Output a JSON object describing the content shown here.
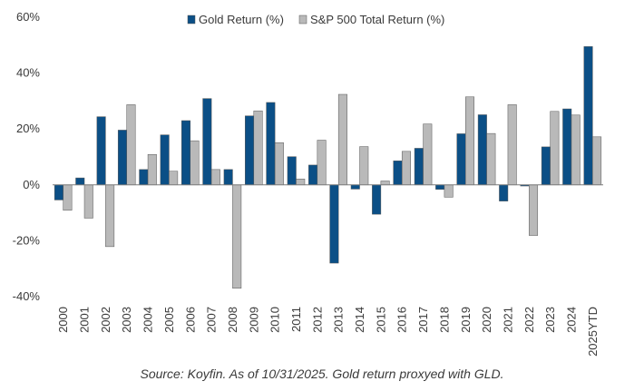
{
  "chart_data": {
    "type": "bar",
    "categories": [
      "2000",
      "2001",
      "2002",
      "2003",
      "2004",
      "2005",
      "2006",
      "2007",
      "2008",
      "2009",
      "2010",
      "2011",
      "2012",
      "2013",
      "2014",
      "2015",
      "2016",
      "2017",
      "2018",
      "2019",
      "2020",
      "2021",
      "2022",
      "2023",
      "2024",
      "2025YTD"
    ],
    "series": [
      {
        "name": "Gold Return (%)",
        "color": "#0b4f86",
        "values": [
          -5.4,
          2.5,
          24.4,
          19.6,
          5.5,
          17.9,
          23.0,
          30.9,
          5.5,
          24.7,
          29.5,
          10.1,
          7.1,
          -28.0,
          -1.5,
          -10.5,
          8.6,
          13.1,
          -1.6,
          18.3,
          25.1,
          -5.8,
          -0.4,
          13.6,
          27.2,
          49.5
        ]
      },
      {
        "name": "S&P 500 Total Return (%)",
        "color": "#b9b9b9",
        "values": [
          -9.1,
          -11.9,
          -22.1,
          28.7,
          10.9,
          4.9,
          15.8,
          5.5,
          -37.0,
          26.5,
          15.1,
          2.1,
          16.0,
          32.4,
          13.7,
          1.4,
          12.0,
          21.8,
          -4.4,
          31.5,
          18.4,
          28.7,
          -18.1,
          26.3,
          25.0,
          17.2
        ]
      }
    ],
    "ylim": [
      -40,
      60
    ],
    "yticks": [
      -40,
      -20,
      0,
      20,
      40,
      60
    ],
    "ytick_labels": [
      "-40%",
      "-20%",
      "0%",
      "20%",
      "40%",
      "60%"
    ],
    "legend": "top-center",
    "grid": false,
    "source": "Source: Koyfin. As of 10/31/2025. Gold return proxyed with GLD."
  }
}
